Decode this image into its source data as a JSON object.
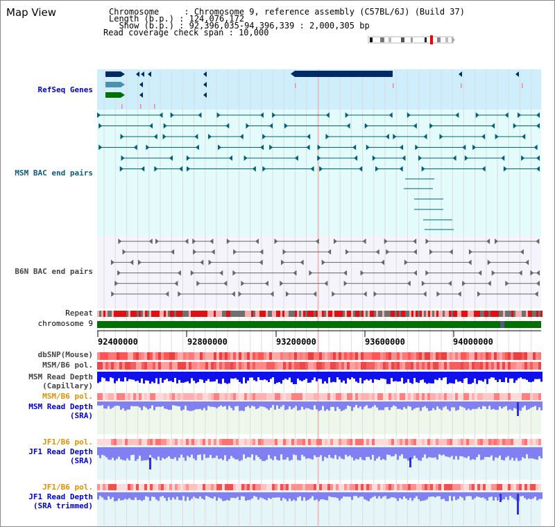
{
  "header": {
    "title": "Map View",
    "chromosome_line": "Chromosome     : Chromosome 9, reference assembly (C57BL/6J) (Build 37)",
    "length_line": "Length (b.p.) : 124,076,172",
    "show_line": "  Show (b.p.) : 92,396,035-94,396,339 : 2,000,305 bp",
    "coverage_line": "Read coverage check span : 10,000"
  },
  "tracks": {
    "refseq": "RefSeq Genes",
    "msm_bac": "MSM BAC end pairs",
    "b6n_bac": "B6N BAC end pairs",
    "repeat": "Repeat",
    "chromosome": "chromosome 9",
    "dbsnp": "dbSNP(Mouse)",
    "msm_b6_pol": "MSM/B6 pol.",
    "msm_depth_cap_1": "MSM Read Depth",
    "msm_depth_cap_2": "(Capillary)",
    "msm_b6_pol_2": "MSM/B6 pol.",
    "msm_depth_sra_1": "MSM Read Depth",
    "msm_depth_sra_2": "(SRA)",
    "jf1_b6_pol": "JF1/B6 pol.",
    "jf1_depth_sra_1": "JF1 Read Depth",
    "jf1_depth_sra_2": "(SRA)",
    "jf1_b6_pol_2": "JF1/B6 pol.",
    "jf1_depth_trim_1": "JF1 Read Depth",
    "jf1_depth_trim_2": "(SRA trimmed)"
  },
  "axis": {
    "ticks": [
      "92400000",
      "92800000",
      "93200000",
      "93600000",
      "94000000"
    ]
  },
  "colors": {
    "refseq_bg": "#cdeefa",
    "msm_bg": "#e3fbfb",
    "b6n_bg": "#f4f4fa",
    "chromosome_bar": "#007000",
    "dark_gene": "#002a66",
    "teal_line": "#00607a",
    "depth_blue": "#1010ee",
    "depth_sra": "#8080f2"
  }
}
